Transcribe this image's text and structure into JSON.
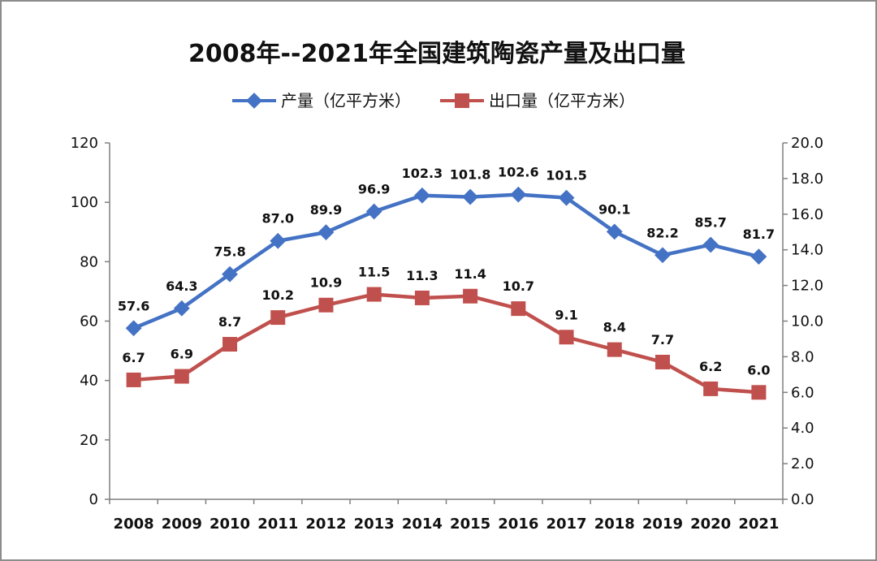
{
  "chart_data": {
    "type": "line",
    "title": "2008年--2021年全国建筑陶瓷产量及出口量",
    "categories": [
      "2008",
      "2009",
      "2010",
      "2011",
      "2012",
      "2013",
      "2014",
      "2015",
      "2016",
      "2017",
      "2018",
      "2019",
      "2020",
      "2021"
    ],
    "series": [
      {
        "name": "产量（亿平方米）",
        "axis": "left",
        "color": "#4472C4",
        "marker": "diamond",
        "values": [
          57.6,
          64.3,
          75.8,
          87.0,
          89.9,
          96.9,
          102.3,
          101.8,
          102.6,
          101.5,
          90.1,
          82.2,
          85.7,
          81.7
        ],
        "labels": [
          "57.6",
          "64.3",
          "75.8",
          "87.0",
          "89.9",
          "96.9",
          "102.3",
          "101.8",
          "102.6",
          "101.5",
          "90.1",
          "82.2",
          "85.7",
          "81.7"
        ]
      },
      {
        "name": "出口量（亿平方米）",
        "axis": "right",
        "color": "#C0504D",
        "marker": "square",
        "values": [
          6.7,
          6.9,
          8.7,
          10.2,
          10.9,
          11.5,
          11.3,
          11.4,
          10.7,
          9.1,
          8.4,
          7.7,
          6.2,
          6.0
        ],
        "labels": [
          "6.7",
          "6.9",
          "8.7",
          "10.2",
          "10.9",
          "11.5",
          "11.3",
          "11.4",
          "10.7",
          "9.1",
          "8.4",
          "7.7",
          "6.2",
          "6.0"
        ]
      }
    ],
    "y_left": {
      "range": [
        0,
        120
      ],
      "ticks": [
        "0",
        "20",
        "40",
        "60",
        "80",
        "100",
        "120"
      ]
    },
    "y_right": {
      "range": [
        0,
        20
      ],
      "ticks": [
        "0.0",
        "2.0",
        "4.0",
        "6.0",
        "8.0",
        "10.0",
        "12.0",
        "14.0",
        "16.0",
        "18.0",
        "20.0"
      ]
    },
    "grid": false,
    "legend": "top-center"
  }
}
